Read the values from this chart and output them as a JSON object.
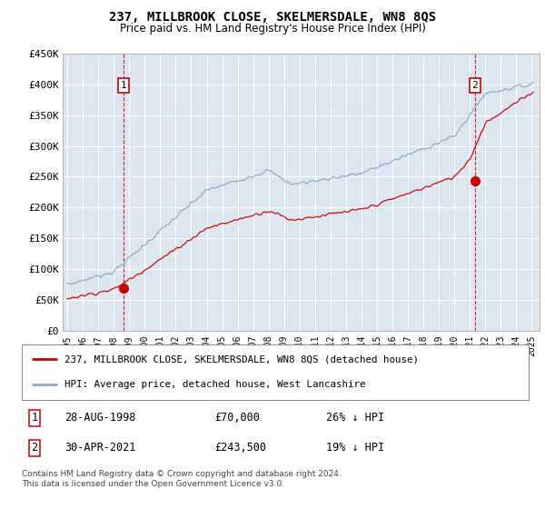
{
  "title": "237, MILLBROOK CLOSE, SKELMERSDALE, WN8 8QS",
  "subtitle": "Price paid vs. HM Land Registry's House Price Index (HPI)",
  "plot_bg_color": "#dce6f1",
  "ylim": [
    0,
    450000
  ],
  "yticks": [
    0,
    50000,
    100000,
    150000,
    200000,
    250000,
    300000,
    350000,
    400000,
    450000
  ],
  "ytick_labels": [
    "£0",
    "£50K",
    "£100K",
    "£150K",
    "£200K",
    "£250K",
    "£300K",
    "£350K",
    "£400K",
    "£450K"
  ],
  "sale1_date_num": 1998.65,
  "sale1_price": 70000,
  "sale1_label": "1",
  "sale2_date_num": 2021.33,
  "sale2_price": 243500,
  "sale2_label": "2",
  "legend_line1": "237, MILLBROOK CLOSE, SKELMERSDALE, WN8 8QS (detached house)",
  "legend_line2": "HPI: Average price, detached house, West Lancashire",
  "table_row1": [
    "1",
    "28-AUG-1998",
    "£70,000",
    "26% ↓ HPI"
  ],
  "table_row2": [
    "2",
    "30-APR-2021",
    "£243,500",
    "19% ↓ HPI"
  ],
  "footnote": "Contains HM Land Registry data © Crown copyright and database right 2024.\nThis data is licensed under the Open Government Licence v3.0.",
  "red_color": "#cc0000",
  "blue_color": "#88aacc",
  "grid_color": "#ffffff",
  "spine_color": "#aaaaaa"
}
